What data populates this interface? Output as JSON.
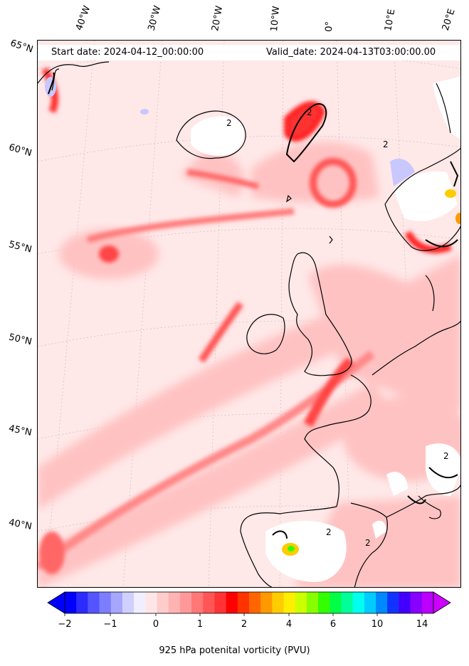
{
  "header": {
    "start_date": "Start date: 2024-04-12_00:00:00",
    "valid_date": "Valid_date: 2024-04-13T03:00:00.00"
  },
  "lon_labels": [
    "40°W",
    "30°W",
    "20°W",
    "10°W",
    "0°",
    "10°E",
    "20°E"
  ],
  "lat_labels": [
    "65°N",
    "60°N",
    "55°N",
    "50°N",
    "45°N",
    "40°N"
  ],
  "colorbar": {
    "label": "925 hPa potenital vorticity (PVU)",
    "ticks": [
      "−2",
      "−1",
      "0",
      "1",
      "2",
      "4",
      "6",
      "10",
      "14"
    ],
    "colors": [
      "#0000ff",
      "#2b2bff",
      "#5555ff",
      "#7d7dff",
      "#a6a6ff",
      "#d0d0ff",
      "#efefff",
      "#ffe6e6",
      "#ffcccc",
      "#ffb3b3",
      "#ff9999",
      "#ff7777",
      "#ff5555",
      "#ff3333",
      "#ff0000",
      "#ff3300",
      "#ff6600",
      "#ff9900",
      "#ffcc00",
      "#ffee00",
      "#ccff00",
      "#88ff00",
      "#33ff00",
      "#00ff44",
      "#00ff99",
      "#00ffee",
      "#00ccff",
      "#0088ff",
      "#1133ff",
      "#4400ff",
      "#8800ff",
      "#bb00ff"
    ],
    "under_color": "#0000ff",
    "over_color": "#cc00ff"
  },
  "map": {
    "projection": "stereographic",
    "region": "North Atlantic and Western Europe",
    "contour_value": "2"
  }
}
